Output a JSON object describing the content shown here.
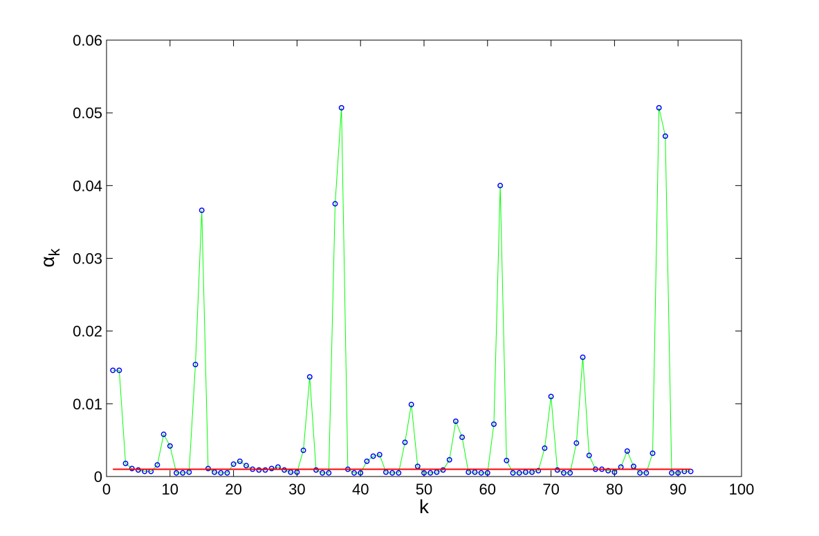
{
  "chart_data": {
    "type": "line",
    "xlabel": "k",
    "ylabel": "α",
    "ylabel_subscript": "k",
    "x": [
      1,
      2,
      3,
      4,
      5,
      6,
      7,
      8,
      9,
      10,
      11,
      12,
      13,
      14,
      15,
      16,
      17,
      18,
      19,
      20,
      21,
      22,
      23,
      24,
      25,
      26,
      27,
      28,
      29,
      30,
      31,
      32,
      33,
      34,
      35,
      36,
      37,
      38,
      39,
      40,
      41,
      42,
      43,
      44,
      45,
      46,
      47,
      48,
      49,
      50,
      51,
      52,
      53,
      54,
      55,
      56,
      57,
      58,
      59,
      60,
      61,
      62,
      63,
      64,
      65,
      66,
      67,
      68,
      69,
      70,
      71,
      72,
      73,
      74,
      75,
      76,
      77,
      78,
      79,
      80,
      81,
      82,
      83,
      84,
      85,
      86,
      87,
      88,
      89,
      90,
      91,
      92
    ],
    "series": [
      {
        "color": "#00ff00",
        "marker_color": "#0000ff",
        "marker": "circle",
        "values": [
          0.0146,
          0.0146,
          0.0018,
          0.0011,
          0.0009,
          0.0007,
          0.0007,
          0.0016,
          0.0058,
          0.0042,
          0.0005,
          0.0005,
          0.0006,
          0.0154,
          0.0366,
          0.0011,
          0.0006,
          0.0005,
          0.0005,
          0.0017,
          0.0021,
          0.0015,
          0.001,
          0.0009,
          0.0009,
          0.0011,
          0.0013,
          0.0009,
          0.0006,
          0.0006,
          0.0036,
          0.0137,
          0.0009,
          0.0005,
          0.0005,
          0.0375,
          0.0507,
          0.001,
          0.0005,
          0.0005,
          0.0021,
          0.0028,
          0.003,
          0.0006,
          0.0005,
          0.0005,
          0.0047,
          0.0099,
          0.0014,
          0.0005,
          0.0005,
          0.0006,
          0.0009,
          0.0023,
          0.0076,
          0.0054,
          0.0006,
          0.0006,
          0.0005,
          0.0005,
          0.0072,
          0.04,
          0.0022,
          0.0005,
          0.0005,
          0.0006,
          0.0006,
          0.0008,
          0.0039,
          0.011,
          0.0009,
          0.0005,
          0.0005,
          0.0046,
          0.0164,
          0.0029,
          0.001,
          0.001,
          0.0008,
          0.0006,
          0.0013,
          0.0035,
          0.0014,
          0.0005,
          0.0005,
          0.0032,
          0.0507,
          0.0468,
          0.0005,
          0.0005,
          0.0007,
          0.0007
        ]
      },
      {
        "color": "#ff0000",
        "x": [
          1,
          92
        ],
        "values": [
          0.001,
          0.001
        ]
      }
    ],
    "xlim": [
      0,
      100
    ],
    "xticks": [
      0,
      10,
      20,
      30,
      40,
      50,
      60,
      70,
      80,
      90,
      100
    ],
    "ylim": [
      0,
      0.06
    ],
    "yticks": [
      0,
      0.01,
      0.02,
      0.03,
      0.04,
      0.05,
      0.06
    ]
  }
}
